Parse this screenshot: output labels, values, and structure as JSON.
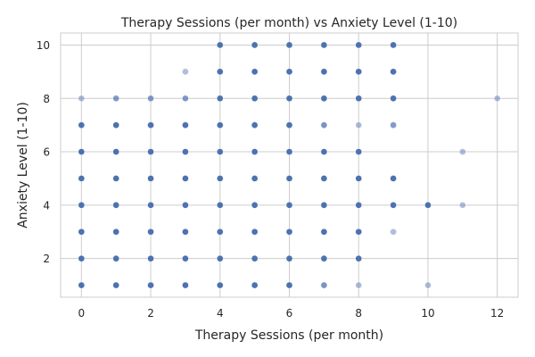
{
  "chart_data": {
    "type": "scatter",
    "title": "Therapy Sessions (per month) vs Anxiety Level (1-10)",
    "xlabel": "Therapy Sessions (per month)",
    "ylabel": "Anxiety Level (1-10)",
    "xlim": [
      -0.6,
      12.6
    ],
    "ylim": [
      0.55,
      10.45
    ],
    "xticks": [
      0,
      2,
      4,
      6,
      8,
      10,
      12
    ],
    "yticks": [
      2,
      4,
      6,
      8,
      10
    ],
    "grid": true,
    "marker_color": "#4c72b0",
    "points": [
      {
        "x": 0,
        "y": 8,
        "a": 0.45
      },
      {
        "x": 0,
        "y": 7,
        "a": 1
      },
      {
        "x": 0,
        "y": 6,
        "a": 1
      },
      {
        "x": 0,
        "y": 5,
        "a": 1
      },
      {
        "x": 0,
        "y": 4,
        "a": 1
      },
      {
        "x": 0,
        "y": 3,
        "a": 1
      },
      {
        "x": 0,
        "y": 2,
        "a": 1
      },
      {
        "x": 0,
        "y": 1,
        "a": 1
      },
      {
        "x": 1,
        "y": 8,
        "a": 0.7
      },
      {
        "x": 1,
        "y": 7,
        "a": 1
      },
      {
        "x": 1,
        "y": 6,
        "a": 1
      },
      {
        "x": 1,
        "y": 5,
        "a": 1
      },
      {
        "x": 1,
        "y": 4,
        "a": 1
      },
      {
        "x": 1,
        "y": 3,
        "a": 1
      },
      {
        "x": 1,
        "y": 2,
        "a": 1
      },
      {
        "x": 1,
        "y": 1,
        "a": 1
      },
      {
        "x": 2,
        "y": 8,
        "a": 0.7
      },
      {
        "x": 2,
        "y": 7,
        "a": 1
      },
      {
        "x": 2,
        "y": 6,
        "a": 1
      },
      {
        "x": 2,
        "y": 5,
        "a": 1
      },
      {
        "x": 2,
        "y": 4,
        "a": 1
      },
      {
        "x": 2,
        "y": 3,
        "a": 1
      },
      {
        "x": 2,
        "y": 2,
        "a": 1
      },
      {
        "x": 2,
        "y": 1,
        "a": 1
      },
      {
        "x": 3,
        "y": 9,
        "a": 0.45
      },
      {
        "x": 3,
        "y": 8,
        "a": 0.7
      },
      {
        "x": 3,
        "y": 7,
        "a": 1
      },
      {
        "x": 3,
        "y": 6,
        "a": 1
      },
      {
        "x": 3,
        "y": 5,
        "a": 1
      },
      {
        "x": 3,
        "y": 4,
        "a": 1
      },
      {
        "x": 3,
        "y": 3,
        "a": 1
      },
      {
        "x": 3,
        "y": 2,
        "a": 1
      },
      {
        "x": 3,
        "y": 1,
        "a": 1
      },
      {
        "x": 4,
        "y": 10,
        "a": 1
      },
      {
        "x": 4,
        "y": 9,
        "a": 1
      },
      {
        "x": 4,
        "y": 8,
        "a": 1
      },
      {
        "x": 4,
        "y": 7,
        "a": 1
      },
      {
        "x": 4,
        "y": 6,
        "a": 1
      },
      {
        "x": 4,
        "y": 5,
        "a": 1
      },
      {
        "x": 4,
        "y": 4,
        "a": 1
      },
      {
        "x": 4,
        "y": 3,
        "a": 1
      },
      {
        "x": 4,
        "y": 2,
        "a": 1
      },
      {
        "x": 4,
        "y": 1,
        "a": 1
      },
      {
        "x": 5,
        "y": 10,
        "a": 1
      },
      {
        "x": 5,
        "y": 9,
        "a": 1
      },
      {
        "x": 5,
        "y": 8,
        "a": 1
      },
      {
        "x": 5,
        "y": 7,
        "a": 1
      },
      {
        "x": 5,
        "y": 6,
        "a": 1
      },
      {
        "x": 5,
        "y": 5,
        "a": 1
      },
      {
        "x": 5,
        "y": 4,
        "a": 1
      },
      {
        "x": 5,
        "y": 3,
        "a": 1
      },
      {
        "x": 5,
        "y": 2,
        "a": 1
      },
      {
        "x": 5,
        "y": 1,
        "a": 1
      },
      {
        "x": 6,
        "y": 10,
        "a": 1
      },
      {
        "x": 6,
        "y": 9,
        "a": 1
      },
      {
        "x": 6,
        "y": 8,
        "a": 1
      },
      {
        "x": 6,
        "y": 7,
        "a": 1
      },
      {
        "x": 6,
        "y": 6,
        "a": 1
      },
      {
        "x": 6,
        "y": 5,
        "a": 1
      },
      {
        "x": 6,
        "y": 4,
        "a": 1
      },
      {
        "x": 6,
        "y": 3,
        "a": 1
      },
      {
        "x": 6,
        "y": 2,
        "a": 1
      },
      {
        "x": 6,
        "y": 1,
        "a": 1
      },
      {
        "x": 7,
        "y": 10,
        "a": 1
      },
      {
        "x": 7,
        "y": 9,
        "a": 1
      },
      {
        "x": 7,
        "y": 8,
        "a": 1
      },
      {
        "x": 7,
        "y": 7,
        "a": 0.75
      },
      {
        "x": 7,
        "y": 6,
        "a": 1
      },
      {
        "x": 7,
        "y": 5,
        "a": 1
      },
      {
        "x": 7,
        "y": 4,
        "a": 1
      },
      {
        "x": 7,
        "y": 3,
        "a": 1
      },
      {
        "x": 7,
        "y": 2,
        "a": 1
      },
      {
        "x": 7,
        "y": 1,
        "a": 0.75
      },
      {
        "x": 8,
        "y": 10,
        "a": 1
      },
      {
        "x": 8,
        "y": 9,
        "a": 1
      },
      {
        "x": 8,
        "y": 8,
        "a": 1
      },
      {
        "x": 8,
        "y": 7,
        "a": 0.45
      },
      {
        "x": 8,
        "y": 6,
        "a": 1
      },
      {
        "x": 8,
        "y": 5,
        "a": 1
      },
      {
        "x": 8,
        "y": 4,
        "a": 1
      },
      {
        "x": 8,
        "y": 3,
        "a": 1
      },
      {
        "x": 8,
        "y": 2,
        "a": 1
      },
      {
        "x": 8,
        "y": 1,
        "a": 0.45
      },
      {
        "x": 9,
        "y": 10,
        "a": 1
      },
      {
        "x": 9,
        "y": 9,
        "a": 1
      },
      {
        "x": 9,
        "y": 8,
        "a": 1
      },
      {
        "x": 9,
        "y": 7,
        "a": 0.7
      },
      {
        "x": 9,
        "y": 5,
        "a": 1
      },
      {
        "x": 9,
        "y": 4,
        "a": 1
      },
      {
        "x": 9,
        "y": 3,
        "a": 0.45
      },
      {
        "x": 10,
        "y": 4,
        "a": 1
      },
      {
        "x": 10,
        "y": 1,
        "a": 0.45
      },
      {
        "x": 11,
        "y": 6,
        "a": 0.45
      },
      {
        "x": 11,
        "y": 4,
        "a": 0.45
      },
      {
        "x": 12,
        "y": 8,
        "a": 0.45
      }
    ]
  }
}
